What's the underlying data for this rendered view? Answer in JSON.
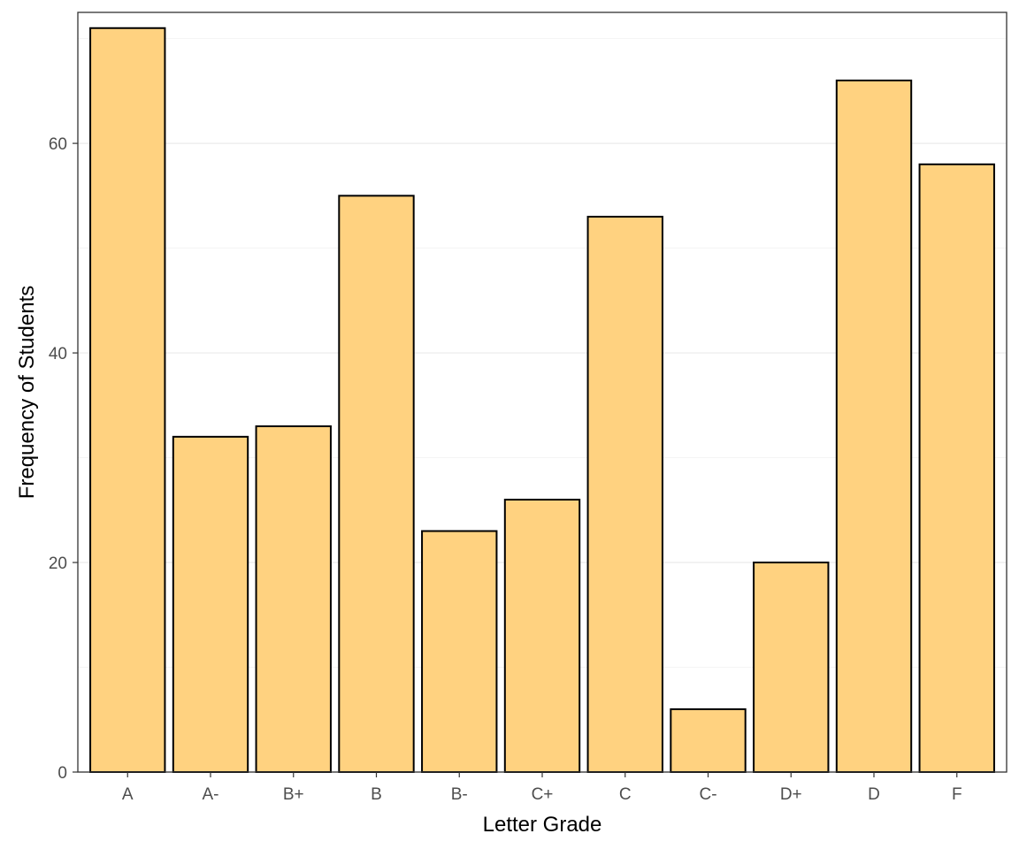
{
  "chart_data": {
    "type": "bar",
    "title": "",
    "xlabel": "Letter Grade",
    "ylabel": "Frequency of Students",
    "categories": [
      "A",
      "A-",
      "B+",
      "B",
      "B-",
      "C+",
      "C",
      "C-",
      "D+",
      "D",
      "F"
    ],
    "values": [
      71,
      32,
      33,
      55,
      23,
      26,
      53,
      6,
      20,
      66,
      58
    ],
    "ylim": [
      0,
      72.5
    ],
    "yticks": [
      0,
      20,
      40,
      60
    ],
    "yticks_minor": [
      10,
      30,
      50,
      70
    ],
    "grid": true,
    "legend": "none",
    "colors": {
      "bar_fill": "#FFD280",
      "bar_stroke": "#000000",
      "gridline": "#ebebeb",
      "panel_border": "#333333"
    }
  }
}
